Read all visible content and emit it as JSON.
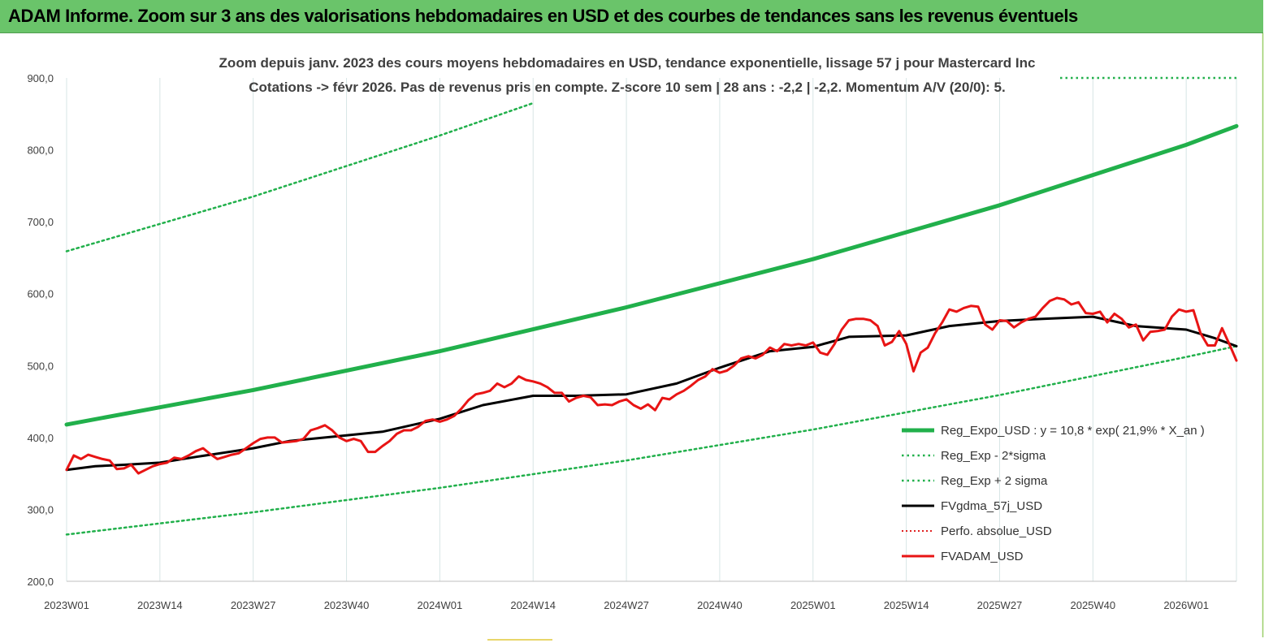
{
  "banner": {
    "title": "ADAM Informe. Zoom sur 3 ans des valorisations hebdomadaires en USD et des courbes de tendances sans les revenus éventuels"
  },
  "chart_data": {
    "type": "line",
    "title": "Zoom depuis janv. 2023 des cours moyens hebdomadaires en USD, tendance exponentielle, lissage 57 j pour Mastercard Inc",
    "subtitle": "Cotations -> févr 2026.  Pas de revenus pris en compte. Z-score 10 sem  | 28 ans : -2,2 | -2,2. Momentum A/V (20/0): 5.",
    "xlabel": "",
    "ylabel": "",
    "ylim": [
      200,
      900
    ],
    "yticks": [
      200,
      300,
      400,
      500,
      600,
      700,
      800,
      900
    ],
    "ytick_labels": [
      "200,0",
      "300,0",
      "400,0",
      "500,0",
      "600,0",
      "700,0",
      "800,0",
      "900,0"
    ],
    "xlim": [
      1,
      164
    ],
    "xticks": [
      1,
      14,
      27,
      40,
      53,
      66,
      79,
      92,
      105,
      118,
      131,
      144,
      157
    ],
    "xtick_labels": [
      "2023W01",
      "2023W14",
      "2023W27",
      "2023W40",
      "2024W01",
      "2024W14",
      "2024W27",
      "2024W40",
      "2025W01",
      "2025W14",
      "2025W27",
      "2025W40",
      "2026W01"
    ],
    "grid": "vertical",
    "legend_position": "bottom-right",
    "colors": {
      "trend": "#21b04b",
      "bands": "#21b04b",
      "smooth": "#000000",
      "perfo": "#e02020",
      "price": "#e81414"
    },
    "series": [
      {
        "name": "Reg_Expo_USD : y = 10,8 * exp( 21,9% *  X_an )",
        "key": "trend",
        "style": "solid-thick",
        "x": [
          1,
          27,
          53,
          79,
          105,
          131,
          157,
          164
        ],
        "y": [
          418,
          466,
          520,
          581,
          648,
          723,
          807,
          833
        ]
      },
      {
        "name": "Reg_Exp - 2*sigma",
        "key": "lower",
        "style": "dotted",
        "x": [
          1,
          27,
          53,
          79,
          105,
          131,
          157,
          164
        ],
        "y": [
          265,
          296,
          330,
          368,
          411,
          459,
          512,
          527
        ]
      },
      {
        "name": "Reg_Exp + 2 sigma",
        "key": "upper",
        "style": "dotted",
        "x": [
          1,
          27,
          53,
          66
        ],
        "y": [
          659,
          735,
          820,
          865
        ]
      },
      {
        "name": "FVgdma_57j_USD",
        "key": "smooth",
        "style": "solid",
        "x": [
          1,
          5,
          9,
          14,
          19,
          27,
          32,
          40,
          45,
          53,
          59,
          66,
          72,
          79,
          86,
          92,
          99,
          105,
          110,
          118,
          124,
          131,
          137,
          144,
          150,
          157,
          161,
          164
        ],
        "y": [
          355,
          360,
          362,
          365,
          373,
          385,
          395,
          403,
          408,
          426,
          445,
          458,
          458,
          460,
          475,
          497,
          520,
          526,
          540,
          542,
          555,
          562,
          565,
          568,
          555,
          550,
          538,
          527
        ]
      },
      {
        "name": "Perfo. absolue_USD",
        "key": "perfo",
        "style": "dotted",
        "x": [],
        "y": []
      },
      {
        "name": "FVADAM_USD",
        "key": "price",
        "style": "solid-medium",
        "x": [
          1,
          2,
          3,
          4,
          5,
          6,
          7,
          8,
          9,
          10,
          11,
          12,
          13,
          14,
          15,
          16,
          17,
          18,
          19,
          20,
          21,
          22,
          23,
          24,
          25,
          26,
          27,
          28,
          29,
          30,
          31,
          32,
          33,
          34,
          35,
          36,
          37,
          38,
          39,
          40,
          41,
          42,
          43,
          44,
          45,
          46,
          47,
          48,
          49,
          50,
          51,
          52,
          53,
          54,
          55,
          56,
          57,
          58,
          59,
          60,
          61,
          62,
          63,
          64,
          65,
          66,
          67,
          68,
          69,
          70,
          71,
          72,
          73,
          74,
          75,
          76,
          77,
          78,
          79,
          80,
          81,
          82,
          83,
          84,
          85,
          86,
          87,
          88,
          89,
          90,
          91,
          92,
          93,
          94,
          95,
          96,
          97,
          98,
          99,
          100,
          101,
          102,
          103,
          104,
          105,
          106,
          107,
          108,
          109,
          110,
          111,
          112,
          113,
          114,
          115,
          116,
          117,
          118,
          119,
          120,
          121,
          122,
          123,
          124,
          125,
          126,
          127,
          128,
          129,
          130,
          131,
          132,
          133,
          134,
          135,
          136,
          137,
          138,
          139,
          140,
          141,
          142,
          143,
          144,
          145,
          146,
          147,
          148,
          149,
          150,
          151,
          152,
          153,
          154,
          155,
          156,
          157,
          158,
          159,
          160,
          161,
          162,
          163,
          164
        ],
        "y": [
          355,
          375,
          370,
          376,
          373,
          370,
          368,
          356,
          357,
          362,
          350,
          355,
          360,
          363,
          365,
          372,
          370,
          375,
          381,
          385,
          377,
          370,
          373,
          376,
          378,
          385,
          392,
          398,
          400,
          400,
          393,
          394,
          395,
          398,
          410,
          413,
          417,
          410,
          400,
          395,
          398,
          395,
          380,
          380,
          388,
          395,
          405,
          410,
          410,
          415,
          423,
          425,
          422,
          425,
          430,
          440,
          452,
          460,
          462,
          465,
          475,
          470,
          475,
          485,
          480,
          478,
          475,
          470,
          462,
          462,
          450,
          455,
          458,
          456,
          445,
          446,
          445,
          450,
          453,
          445,
          440,
          446,
          438,
          455,
          453,
          460,
          465,
          472,
          480,
          485,
          495,
          490,
          493,
          500,
          510,
          513,
          510,
          515,
          525,
          520,
          530,
          528,
          530,
          528,
          532,
          518,
          515,
          530,
          550,
          563,
          565,
          565,
          563,
          555,
          528,
          533,
          548,
          530,
          492,
          518,
          525,
          545,
          560,
          578,
          575,
          580,
          583,
          582,
          557,
          550,
          563,
          562,
          553,
          560,
          565,
          568,
          580,
          590,
          594,
          592,
          585,
          588,
          573,
          572,
          575,
          560,
          572,
          565,
          553,
          557,
          535,
          547,
          548,
          550,
          568,
          578,
          575,
          577,
          545,
          528,
          528,
          552,
          530,
          507
        ]
      }
    ]
  }
}
